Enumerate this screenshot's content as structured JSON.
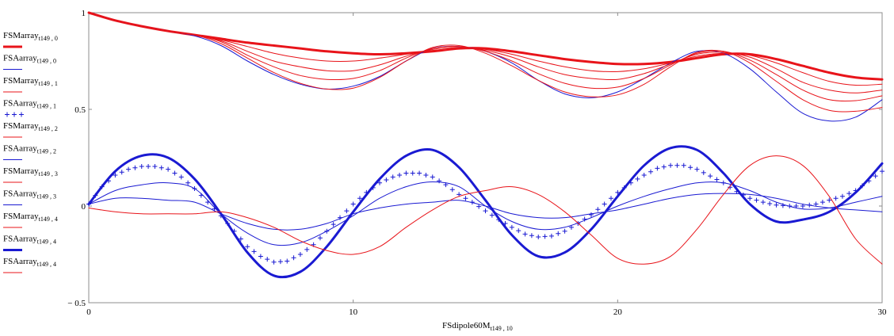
{
  "chart_data": {
    "type": "line",
    "xlabel": "FSdipole60M",
    "xlabel_sub": "t149 , 10",
    "xlim": [
      0,
      30
    ],
    "ylim": [
      -0.5,
      1
    ],
    "x_ticks": [
      0,
      10,
      20,
      30
    ],
    "y_ticks": [
      1,
      0.5,
      0,
      -0.5
    ],
    "x_tick_labels": [
      "0",
      "10",
      "20",
      "30"
    ],
    "y_tick_labels": [
      "1",
      "0.5",
      "0",
      "− 0.5"
    ],
    "legend_position": "left",
    "colors": {
      "red": "#e8141a",
      "blue": "#1a1ad2"
    },
    "series": [
      {
        "name": "FSMarray",
        "sub": "t149 , 0",
        "color": "#e8141a",
        "width": 3,
        "style": "solid",
        "x": [
          0,
          1,
          2,
          3,
          4,
          5,
          6,
          7,
          8,
          9,
          10,
          11,
          12,
          13,
          14,
          15,
          16,
          17,
          18,
          19,
          20,
          21,
          22,
          23,
          24,
          25,
          26,
          27,
          28,
          29,
          30
        ],
        "y": [
          1.0,
          0.96,
          0.93,
          0.905,
          0.885,
          0.865,
          0.845,
          0.83,
          0.815,
          0.8,
          0.79,
          0.785,
          0.79,
          0.8,
          0.815,
          0.815,
          0.8,
          0.78,
          0.76,
          0.745,
          0.735,
          0.735,
          0.745,
          0.765,
          0.785,
          0.785,
          0.76,
          0.725,
          0.69,
          0.665,
          0.655
        ]
      },
      {
        "name": "FSAarray",
        "sub": "t149 , 0",
        "color": "#1a1ad2",
        "width": 1,
        "style": "solid",
        "x": [
          0,
          1,
          2,
          3,
          4,
          5,
          6,
          7,
          8,
          9,
          10,
          11,
          12,
          13,
          14,
          15,
          16,
          17,
          18,
          19,
          20,
          21,
          22,
          23,
          24,
          25,
          26,
          27,
          28,
          29,
          30
        ],
        "y": [
          1.0,
          0.96,
          0.93,
          0.905,
          0.88,
          0.83,
          0.75,
          0.68,
          0.63,
          0.605,
          0.62,
          0.67,
          0.75,
          0.815,
          0.825,
          0.8,
          0.74,
          0.65,
          0.58,
          0.56,
          0.59,
          0.66,
          0.74,
          0.8,
          0.79,
          0.71,
          0.59,
          0.48,
          0.44,
          0.46,
          0.55
        ]
      },
      {
        "name": "FSMarray",
        "sub": "t149 , 1",
        "color": "#e8141a",
        "width": 1,
        "style": "solid",
        "x": [
          0,
          1,
          2,
          3,
          4,
          5,
          6,
          7,
          8,
          9,
          10,
          11,
          12,
          13,
          14,
          15,
          16,
          17,
          18,
          19,
          20,
          21,
          22,
          23,
          24,
          25,
          26,
          27,
          28,
          29,
          30
        ],
        "y": [
          1.0,
          0.96,
          0.93,
          0.905,
          0.885,
          0.86,
          0.825,
          0.79,
          0.765,
          0.75,
          0.75,
          0.765,
          0.785,
          0.805,
          0.815,
          0.81,
          0.785,
          0.75,
          0.72,
          0.7,
          0.695,
          0.71,
          0.74,
          0.775,
          0.79,
          0.78,
          0.74,
          0.69,
          0.645,
          0.625,
          0.63
        ]
      },
      {
        "name": "FSAarray",
        "sub": "t149 , 1",
        "color": "#1a1ad2",
        "width": 1,
        "style": "plus",
        "x": [
          0,
          0.5,
          1,
          1.5,
          2,
          2.5,
          3,
          3.5,
          4,
          4.5,
          5,
          5.5,
          6,
          6.5,
          7,
          7.5,
          8,
          8.5,
          9,
          9.5,
          10,
          10.5,
          11,
          11.5,
          12,
          12.5,
          13,
          13.5,
          14,
          14.5,
          15,
          15.5,
          16,
          16.5,
          17,
          17.5,
          18,
          18.5,
          19,
          19.5,
          20,
          20.5,
          21,
          21.5,
          22,
          22.5,
          23,
          23.5,
          24,
          24.5,
          25,
          25.5,
          26,
          26.5,
          27,
          27.5,
          28,
          28.5,
          29,
          29.5,
          30
        ],
        "y": [
          0.01,
          0.1,
          0.16,
          0.19,
          0.205,
          0.205,
          0.19,
          0.15,
          0.09,
          0.02,
          -0.05,
          -0.13,
          -0.21,
          -0.26,
          -0.29,
          -0.285,
          -0.25,
          -0.2,
          -0.13,
          -0.06,
          0.01,
          0.07,
          0.12,
          0.15,
          0.17,
          0.17,
          0.15,
          0.11,
          0.06,
          0.02,
          -0.025,
          -0.07,
          -0.11,
          -0.145,
          -0.16,
          -0.155,
          -0.13,
          -0.09,
          -0.045,
          0.01,
          0.07,
          0.12,
          0.16,
          0.195,
          0.21,
          0.21,
          0.19,
          0.155,
          0.12,
          0.075,
          0.04,
          0.02,
          0.005,
          0.0,
          0.0,
          0.01,
          0.03,
          0.05,
          0.08,
          0.13,
          0.18
        ]
      },
      {
        "name": "FSMarray",
        "sub": "t149 , 2",
        "color": "#e8141a",
        "width": 1,
        "style": "solid",
        "x": [
          0,
          1,
          2,
          3,
          4,
          5,
          6,
          7,
          8,
          9,
          10,
          11,
          12,
          13,
          14,
          15,
          16,
          17,
          18,
          19,
          20,
          21,
          22,
          23,
          24,
          25,
          26,
          27,
          28,
          29,
          30
        ],
        "y": [
          1.0,
          0.96,
          0.93,
          0.905,
          0.885,
          0.855,
          0.8,
          0.75,
          0.72,
          0.7,
          0.7,
          0.73,
          0.775,
          0.81,
          0.82,
          0.805,
          0.77,
          0.72,
          0.68,
          0.66,
          0.655,
          0.685,
          0.735,
          0.785,
          0.795,
          0.77,
          0.71,
          0.64,
          0.6,
          0.585,
          0.6
        ]
      },
      {
        "name": "FSAarray",
        "sub": "t149 , 2",
        "color": "#1a1ad2",
        "width": 1,
        "style": "solid",
        "x": [
          0,
          1,
          2,
          3,
          4,
          5,
          6,
          7,
          8,
          9,
          10,
          11,
          12,
          13,
          14,
          15,
          16,
          17,
          18,
          19,
          20,
          21,
          22,
          23,
          24,
          25,
          26,
          27,
          28,
          29,
          30
        ],
        "y": [
          0.01,
          0.08,
          0.11,
          0.12,
          0.09,
          -0.04,
          -0.14,
          -0.2,
          -0.19,
          -0.13,
          -0.05,
          0.04,
          0.1,
          0.125,
          0.1,
          0.0,
          -0.08,
          -0.12,
          -0.11,
          -0.06,
          0.0,
          0.05,
          0.09,
          0.12,
          0.12,
          0.08,
          0.02,
          -0.015,
          -0.01,
          0.02,
          0.05
        ]
      },
      {
        "name": "FSMarray",
        "sub": "t149 , 3",
        "color": "#e8141a",
        "width": 1,
        "style": "solid",
        "x": [
          0,
          1,
          2,
          3,
          4,
          5,
          6,
          7,
          8,
          9,
          10,
          11,
          12,
          13,
          14,
          15,
          16,
          17,
          18,
          19,
          20,
          21,
          22,
          23,
          24,
          25,
          26,
          27,
          28,
          29,
          30
        ],
        "y": [
          1.0,
          0.96,
          0.93,
          0.905,
          0.885,
          0.85,
          0.78,
          0.72,
          0.675,
          0.655,
          0.66,
          0.7,
          0.765,
          0.815,
          0.825,
          0.8,
          0.75,
          0.685,
          0.635,
          0.61,
          0.615,
          0.66,
          0.73,
          0.79,
          0.8,
          0.755,
          0.68,
          0.6,
          0.55,
          0.545,
          0.57
        ]
      },
      {
        "name": "FSAarray",
        "sub": "t149 , 3",
        "color": "#1a1ad2",
        "width": 1,
        "style": "solid",
        "x": [
          0,
          1,
          2,
          3,
          4,
          5,
          6,
          7,
          8,
          9,
          10,
          11,
          12,
          13,
          14,
          15,
          16,
          17,
          18,
          19,
          20,
          21,
          22,
          23,
          24,
          25,
          26,
          27,
          28,
          29,
          30
        ],
        "y": [
          0.01,
          0.04,
          0.04,
          0.03,
          0.02,
          -0.04,
          -0.09,
          -0.12,
          -0.12,
          -0.09,
          -0.04,
          -0.01,
          0.01,
          0.02,
          0.03,
          0.0,
          -0.04,
          -0.06,
          -0.06,
          -0.04,
          -0.02,
          0.01,
          0.04,
          0.06,
          0.065,
          0.06,
          0.04,
          0.01,
          -0.01,
          -0.02,
          -0.03
        ]
      },
      {
        "name": "FSMarray",
        "sub": "t149 , 4",
        "color": "#e8141a",
        "width": 1,
        "style": "solid",
        "x": [
          0,
          1,
          2,
          3,
          4,
          5,
          6,
          7,
          8,
          9,
          10,
          11,
          12,
          13,
          14,
          15,
          16,
          17,
          18,
          19,
          20,
          21,
          22,
          23,
          24,
          25,
          26,
          27,
          28,
          29,
          30
        ],
        "y": [
          1.0,
          0.96,
          0.93,
          0.905,
          0.885,
          0.84,
          0.765,
          0.69,
          0.635,
          0.605,
          0.61,
          0.665,
          0.75,
          0.82,
          0.83,
          0.79,
          0.725,
          0.65,
          0.59,
          0.565,
          0.575,
          0.63,
          0.72,
          0.795,
          0.8,
          0.74,
          0.645,
          0.55,
          0.495,
          0.49,
          0.51
        ]
      },
      {
        "name": "FSAarray",
        "sub": "t149 , 4",
        "color": "#1a1ad2",
        "width": 3,
        "style": "solid",
        "x": [
          0,
          1,
          2,
          3,
          4,
          5,
          6,
          7,
          8,
          9,
          10,
          11,
          12,
          13,
          14,
          15,
          16,
          17,
          18,
          19,
          20,
          21,
          22,
          23,
          24,
          25,
          26,
          27,
          28,
          29,
          30
        ],
        "y": [
          0.01,
          0.18,
          0.26,
          0.25,
          0.14,
          -0.04,
          -0.24,
          -0.36,
          -0.34,
          -0.21,
          -0.03,
          0.14,
          0.26,
          0.29,
          0.2,
          0.03,
          -0.15,
          -0.26,
          -0.24,
          -0.12,
          0.05,
          0.21,
          0.3,
          0.29,
          0.17,
          0.01,
          -0.08,
          -0.07,
          -0.03,
          0.07,
          0.22
        ]
      },
      {
        "name": "FSAarray",
        "sub": "t149 , 4",
        "color": "#e8141a",
        "width": 1,
        "style": "solid",
        "x": [
          0,
          1,
          2,
          3,
          4,
          5,
          6,
          7,
          8,
          9,
          10,
          11,
          12,
          13,
          14,
          15,
          16,
          17,
          18,
          19,
          20,
          21,
          22,
          23,
          24,
          25,
          26,
          27,
          28,
          29,
          30
        ],
        "y": [
          -0.01,
          -0.03,
          -0.04,
          -0.04,
          -0.04,
          -0.03,
          -0.06,
          -0.11,
          -0.18,
          -0.23,
          -0.25,
          -0.21,
          -0.11,
          -0.02,
          0.05,
          0.08,
          0.1,
          0.06,
          -0.03,
          -0.15,
          -0.27,
          -0.3,
          -0.26,
          -0.12,
          0.06,
          0.21,
          0.26,
          0.21,
          0.05,
          -0.17,
          -0.3
        ]
      }
    ]
  }
}
